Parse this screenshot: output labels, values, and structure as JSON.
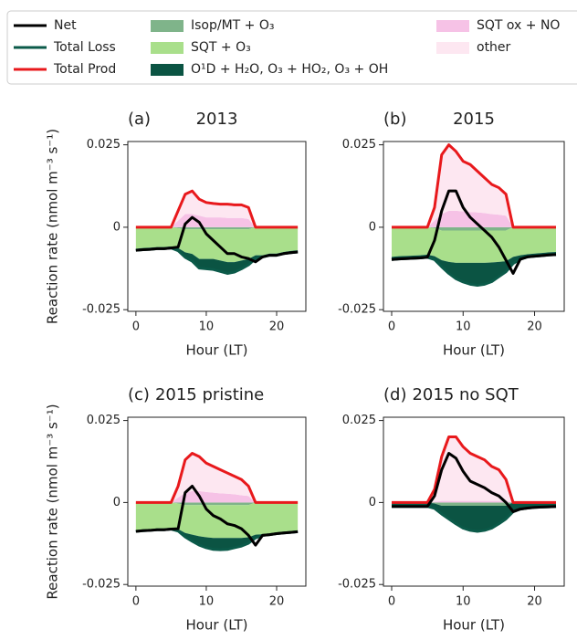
{
  "legend": {
    "items": [
      {
        "name": "Net",
        "color": "#000000",
        "kind": "line"
      },
      {
        "name": "Total Loss",
        "color": "#0b5a49",
        "kind": "line"
      },
      {
        "name": "Total Prod",
        "color": "#e8191c",
        "kind": "line"
      },
      {
        "name": "Isop/MT + O₃",
        "color": "#7fb48a",
        "kind": "area"
      },
      {
        "name": "SQT + O₃",
        "color": "#a9df8b",
        "kind": "area"
      },
      {
        "name": "O¹D + H₂O, O₃ + HO₂, O₃ + OH",
        "color": "#0b5443",
        "kind": "area"
      },
      {
        "name": "SQT ox + NO",
        "color": "#f6c2e6",
        "kind": "area"
      },
      {
        "name": "other",
        "color": "#fde7f1",
        "kind": "area"
      }
    ]
  },
  "chart_data": [
    {
      "type": "line",
      "label": "(a)",
      "title": "2013",
      "title_loc": "center",
      "xlabel": "Hour (LT)",
      "ylabel": "Reaction rate (nmol m⁻³ s⁻¹)",
      "x": [
        0,
        1,
        2,
        3,
        4,
        5,
        6,
        7,
        8,
        9,
        10,
        11,
        12,
        13,
        14,
        15,
        16,
        17,
        18,
        19,
        20,
        21,
        22,
        23
      ],
      "xlim": [
        -1.15,
        24.15
      ],
      "xticks": [
        0,
        10,
        20
      ],
      "ylim": [
        -0.0255,
        0.026
      ],
      "yticks": [
        -0.025,
        0,
        0.025
      ],
      "series": [
        {
          "values": [
            -0.007,
            -0.0068,
            -0.0067,
            -0.0065,
            -0.0065,
            -0.0063,
            -0.006,
            0.001,
            0.003,
            0.0015,
            -0.002,
            -0.004,
            -0.006,
            -0.008,
            -0.008,
            -0.009,
            -0.0095,
            -0.0105,
            -0.009,
            -0.0085,
            -0.0085,
            -0.008,
            -0.0077,
            -0.0075
          ]
        },
        {
          "values": [
            -0.007,
            -0.0068,
            -0.0067,
            -0.0065,
            -0.0065,
            -0.0063,
            -0.0071,
            -0.0091,
            -0.0103,
            -0.0124,
            -0.0126,
            -0.0128,
            -0.0134,
            -0.014,
            -0.0136,
            -0.0126,
            -0.0114,
            -0.0095,
            -0.009,
            -0.0085,
            -0.0085,
            -0.008,
            -0.0077,
            -0.0075
          ]
        },
        {
          "values": [
            0,
            0,
            0,
            0,
            0,
            0,
            0.005,
            0.01,
            0.011,
            0.0085,
            0.0075,
            0.0072,
            0.007,
            0.007,
            0.0068,
            0.0068,
            0.006,
            0,
            0,
            0,
            0,
            0,
            0,
            0
          ]
        },
        {
          "values": [
            0,
            0,
            0,
            0,
            0,
            0,
            -0.0003,
            -0.0006,
            -0.0006,
            -0.0006,
            -0.0006,
            -0.0006,
            -0.0006,
            -0.0006,
            -0.0006,
            -0.0006,
            -0.0006,
            0,
            0,
            0,
            0,
            0,
            0,
            0
          ]
        },
        {
          "values": [
            -0.0065,
            -0.0063,
            -0.0062,
            -0.006,
            -0.006,
            -0.0058,
            -0.006,
            -0.007,
            -0.0075,
            -0.009,
            -0.009,
            -0.009,
            -0.0095,
            -0.01,
            -0.01,
            -0.0095,
            -0.009,
            -0.0085,
            -0.0085,
            -0.008,
            -0.008,
            -0.0075,
            -0.0072,
            -0.007
          ]
        },
        {
          "values": [
            -0.0005,
            -0.0005,
            -0.0005,
            -0.0005,
            -0.0005,
            -0.0005,
            -0.0008,
            -0.0015,
            -0.0022,
            -0.0028,
            -0.003,
            -0.0032,
            -0.0033,
            -0.0034,
            -0.003,
            -0.0025,
            -0.0018,
            -0.001,
            -0.0005,
            -0.0005,
            -0.0005,
            -0.0005,
            -0.0005,
            -0.0005
          ]
        },
        {
          "values": [
            0,
            0,
            0,
            0,
            0,
            0,
            0.002,
            0.004,
            0.004,
            0.0035,
            0.003,
            0.003,
            0.003,
            0.0028,
            0.0028,
            0.0028,
            0.0025,
            0,
            0,
            0,
            0,
            0,
            0,
            0
          ]
        },
        {
          "values": [
            0,
            0,
            0,
            0,
            0,
            0,
            0.003,
            0.006,
            0.007,
            0.005,
            0.0045,
            0.0042,
            0.004,
            0.0042,
            0.004,
            0.004,
            0.0035,
            0,
            0,
            0,
            0,
            0,
            0,
            0
          ]
        }
      ]
    },
    {
      "type": "line",
      "label": "(b)",
      "title": "2015",
      "title_loc": "center",
      "xlabel": "Hour (LT)",
      "x": [
        0,
        1,
        2,
        3,
        4,
        5,
        6,
        7,
        8,
        9,
        10,
        11,
        12,
        13,
        14,
        15,
        16,
        17,
        18,
        19,
        20,
        21,
        22,
        23
      ],
      "xlim": [
        -1.15,
        24.15
      ],
      "xticks": [
        0,
        10,
        20
      ],
      "ylim": [
        -0.0255,
        0.026
      ],
      "yticks": [
        -0.025,
        0,
        0.025
      ],
      "series": [
        {
          "values": [
            -0.0098,
            -0.0096,
            -0.0095,
            -0.0094,
            -0.0093,
            -0.0091,
            -0.004,
            0.005,
            0.011,
            0.011,
            0.006,
            0.003,
            0.001,
            -0.001,
            -0.003,
            -0.006,
            -0.01,
            -0.014,
            -0.0097,
            -0.009,
            -0.0088,
            -0.0086,
            -0.0084,
            -0.0083
          ]
        },
        {
          "values": [
            -0.0098,
            -0.0096,
            -0.0095,
            -0.0094,
            -0.0093,
            -0.0091,
            -0.0098,
            -0.012,
            -0.014,
            -0.0156,
            -0.0166,
            -0.0173,
            -0.0176,
            -0.0173,
            -0.0165,
            -0.015,
            -0.0135,
            -0.011,
            -0.0097,
            -0.009,
            -0.0088,
            -0.0086,
            -0.0084,
            -0.0083
          ]
        },
        {
          "values": [
            0,
            0,
            0,
            0,
            0,
            0,
            0.006,
            0.022,
            0.025,
            0.023,
            0.02,
            0.019,
            0.017,
            0.015,
            0.013,
            0.012,
            0.01,
            0,
            0,
            0,
            0,
            0,
            0,
            0
          ]
        },
        {
          "values": [
            0,
            0,
            0,
            0,
            0,
            0,
            -0.0003,
            -0.001,
            -0.001,
            -0.001,
            -0.001,
            -0.001,
            -0.001,
            -0.001,
            -0.001,
            -0.001,
            -0.001,
            0,
            0,
            0,
            0,
            0,
            0,
            0
          ]
        },
        {
          "values": [
            -0.009,
            -0.0088,
            -0.0087,
            -0.0086,
            -0.0085,
            -0.0083,
            -0.0085,
            -0.009,
            -0.0095,
            -0.0098,
            -0.0098,
            -0.0098,
            -0.0098,
            -0.0098,
            -0.0097,
            -0.0095,
            -0.0093,
            -0.009,
            -0.0085,
            -0.0082,
            -0.008,
            -0.0078,
            -0.0076,
            -0.0075
          ]
        },
        {
          "values": [
            -0.0008,
            -0.0008,
            -0.0008,
            -0.0008,
            -0.0008,
            -0.0008,
            -0.001,
            -0.002,
            -0.0035,
            -0.0048,
            -0.0058,
            -0.0065,
            -0.0068,
            -0.0065,
            -0.0058,
            -0.0045,
            -0.0032,
            -0.002,
            -0.0012,
            -0.0008,
            -0.0008,
            -0.0008,
            -0.0008,
            -0.0008
          ]
        },
        {
          "values": [
            0,
            0,
            0,
            0,
            0,
            0,
            0.002,
            0.004,
            0.005,
            0.005,
            0.0048,
            0.0046,
            0.0045,
            0.0043,
            0.004,
            0.0038,
            0.0035,
            0,
            0,
            0,
            0,
            0,
            0,
            0
          ]
        },
        {
          "values": [
            0,
            0,
            0,
            0,
            0,
            0,
            0.004,
            0.018,
            0.02,
            0.018,
            0.0152,
            0.0144,
            0.0125,
            0.0107,
            0.009,
            0.0082,
            0.0065,
            0,
            0,
            0,
            0,
            0,
            0,
            0
          ]
        }
      ]
    },
    {
      "type": "line",
      "label": "(c)",
      "title": "2015 pristine",
      "title_loc": "left",
      "xlabel": "Hour (LT)",
      "ylabel": "Reaction rate (nmol m⁻³ s⁻¹)",
      "x": [
        0,
        1,
        2,
        3,
        4,
        5,
        6,
        7,
        8,
        9,
        10,
        11,
        12,
        13,
        14,
        15,
        16,
        17,
        18,
        19,
        20,
        21,
        22,
        23
      ],
      "xlim": [
        -1.15,
        24.15
      ],
      "xticks": [
        0,
        10,
        20
      ],
      "ylim": [
        -0.0255,
        0.026
      ],
      "yticks": [
        -0.025,
        0,
        0.025
      ],
      "series": [
        {
          "values": [
            -0.0088,
            -0.0086,
            -0.0085,
            -0.0083,
            -0.0083,
            -0.0081,
            -0.008,
            0.003,
            0.005,
            0.002,
            -0.002,
            -0.004,
            -0.005,
            -0.0065,
            -0.007,
            -0.008,
            -0.01,
            -0.013,
            -0.01,
            -0.0098,
            -0.0095,
            -0.0093,
            -0.0091,
            -0.0089
          ]
        },
        {
          "values": [
            -0.0088,
            -0.0086,
            -0.0085,
            -0.0083,
            -0.0083,
            -0.0081,
            -0.0087,
            -0.0105,
            -0.0118,
            -0.013,
            -0.0138,
            -0.0143,
            -0.0144,
            -0.0143,
            -0.0138,
            -0.0133,
            -0.0124,
            -0.0108,
            -0.01,
            -0.0098,
            -0.0095,
            -0.0093,
            -0.0091,
            -0.0089
          ]
        },
        {
          "values": [
            0,
            0,
            0,
            0,
            0,
            0,
            0.005,
            0.013,
            0.015,
            0.014,
            0.012,
            0.011,
            0.01,
            0.009,
            0.008,
            0.007,
            0.005,
            0,
            0,
            0,
            0,
            0,
            0,
            0
          ]
        },
        {
          "values": [
            0,
            0,
            0,
            0,
            0,
            0,
            -0.0003,
            -0.0008,
            -0.0008,
            -0.0008,
            -0.0008,
            -0.0008,
            -0.0008,
            -0.0008,
            -0.0008,
            -0.0008,
            -0.0008,
            0,
            0,
            0,
            0,
            0,
            0,
            0
          ]
        },
        {
          "values": [
            -0.0085,
            -0.0083,
            -0.0082,
            -0.008,
            -0.008,
            -0.0078,
            -0.0078,
            -0.0085,
            -0.009,
            -0.0095,
            -0.0098,
            -0.01,
            -0.01,
            -0.01,
            -0.01,
            -0.01,
            -0.0098,
            -0.0098,
            -0.0097,
            -0.0095,
            -0.0092,
            -0.009,
            -0.0088,
            -0.0086
          ]
        },
        {
          "values": [
            -0.0003,
            -0.0003,
            -0.0003,
            -0.0003,
            -0.0003,
            -0.0003,
            -0.0006,
            -0.0012,
            -0.002,
            -0.0027,
            -0.0032,
            -0.0035,
            -0.0036,
            -0.0035,
            -0.003,
            -0.0025,
            -0.0018,
            -0.001,
            -0.0003,
            -0.0003,
            -0.0003,
            -0.0003,
            -0.0003,
            -0.0003
          ]
        },
        {
          "values": [
            0,
            0,
            0,
            0,
            0,
            0,
            0.0015,
            0.003,
            0.0035,
            0.0035,
            0.0032,
            0.003,
            0.0028,
            0.0027,
            0.0025,
            0.0022,
            0.002,
            0,
            0,
            0,
            0,
            0,
            0,
            0
          ]
        },
        {
          "values": [
            0,
            0,
            0,
            0,
            0,
            0,
            0.0035,
            0.01,
            0.0115,
            0.0105,
            0.0088,
            0.008,
            0.0072,
            0.0063,
            0.0055,
            0.0048,
            0.003,
            0,
            0,
            0,
            0,
            0,
            0,
            0
          ]
        }
      ]
    },
    {
      "type": "line",
      "label": "(d)",
      "title": "2015 no SQT",
      "title_loc": "left",
      "xlabel": "Hour (LT)",
      "x": [
        0,
        1,
        2,
        3,
        4,
        5,
        6,
        7,
        8,
        9,
        10,
        11,
        12,
        13,
        14,
        15,
        16,
        17,
        18,
        19,
        20,
        21,
        22,
        23
      ],
      "xlim": [
        -1.15,
        24.15
      ],
      "xticks": [
        0,
        10,
        20
      ],
      "ylim": [
        -0.0255,
        0.026
      ],
      "yticks": [
        -0.025,
        0,
        0.025
      ],
      "series": [
        {
          "values": [
            -0.0012,
            -0.0012,
            -0.0012,
            -0.0012,
            -0.0012,
            -0.0012,
            0.002,
            0.01,
            0.015,
            0.0135,
            0.0095,
            0.0065,
            0.0055,
            0.0045,
            0.003,
            0.002,
            0,
            -0.0028,
            -0.002,
            -0.0017,
            -0.0015,
            -0.0014,
            -0.0013,
            -0.0012
          ]
        },
        {
          "values": [
            -0.0012,
            -0.0012,
            -0.0012,
            -0.0012,
            -0.0012,
            -0.0012,
            -0.0018,
            -0.0035,
            -0.005,
            -0.0065,
            -0.0078,
            -0.0085,
            -0.0088,
            -0.0085,
            -0.0078,
            -0.0065,
            -0.005,
            -0.0028,
            -0.002,
            -0.0017,
            -0.0015,
            -0.0014,
            -0.0013,
            -0.0012
          ]
        },
        {
          "values": [
            0,
            0,
            0,
            0,
            0,
            0,
            0.004,
            0.014,
            0.02,
            0.02,
            0.017,
            0.015,
            0.014,
            0.013,
            0.011,
            0.01,
            0.007,
            0,
            0,
            0,
            0,
            0,
            0,
            0
          ]
        },
        {
          "values": [
            0,
            0,
            0,
            0,
            0,
            0,
            -0.0003,
            -0.001,
            -0.001,
            -0.001,
            -0.001,
            -0.001,
            -0.001,
            -0.001,
            -0.001,
            -0.001,
            -0.001,
            0,
            0,
            0,
            0,
            0,
            0,
            0
          ]
        },
        {
          "values": [
            0,
            0,
            0,
            0,
            0,
            0,
            0,
            0,
            0,
            0,
            0,
            0,
            0,
            0,
            0,
            0,
            0,
            0,
            0,
            0,
            0,
            0,
            0,
            0
          ]
        },
        {
          "values": [
            -0.0012,
            -0.0012,
            -0.0012,
            -0.0012,
            -0.0012,
            -0.0012,
            -0.0015,
            -0.0025,
            -0.004,
            -0.0055,
            -0.0068,
            -0.0075,
            -0.0078,
            -0.0075,
            -0.0068,
            -0.0055,
            -0.004,
            -0.0028,
            -0.002,
            -0.0017,
            -0.0015,
            -0.0014,
            -0.0013,
            -0.0012
          ]
        },
        {
          "values": [
            0,
            0,
            0,
            0,
            0,
            0,
            0.0002,
            0.0005,
            0.0005,
            0.0005,
            0.0005,
            0.0005,
            0.0005,
            0.0005,
            0.0005,
            0.0005,
            0.0005,
            0,
            0,
            0,
            0,
            0,
            0,
            0
          ]
        },
        {
          "values": [
            0,
            0,
            0,
            0,
            0,
            0,
            0.0038,
            0.0135,
            0.0195,
            0.0195,
            0.0165,
            0.0145,
            0.0135,
            0.0125,
            0.0105,
            0.0095,
            0.0065,
            0,
            0,
            0,
            0,
            0,
            0,
            0
          ]
        }
      ]
    }
  ]
}
